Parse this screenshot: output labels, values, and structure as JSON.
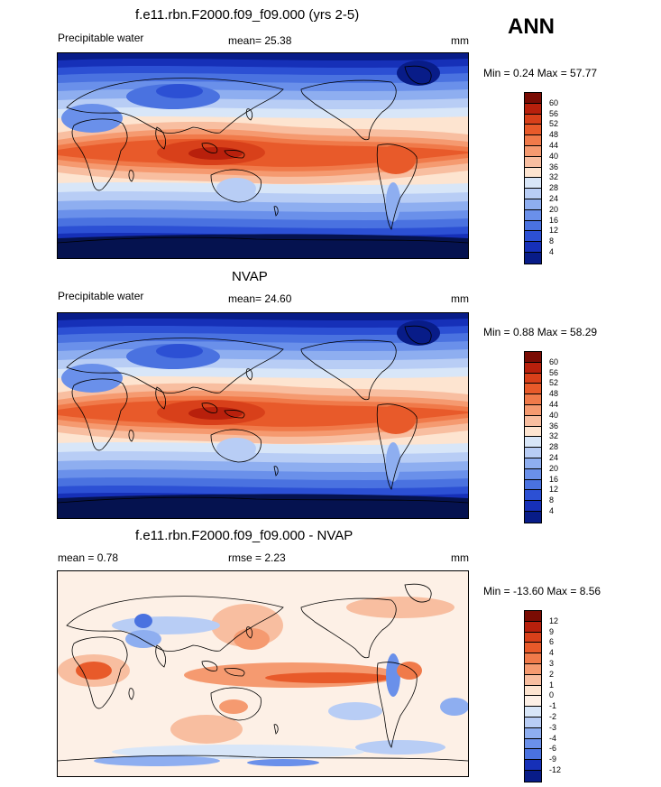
{
  "season": "ANN",
  "panels": [
    {
      "title": "f.e11.rbn.F2000.f09_f09.000 (yrs 2-5)",
      "left_label": "Precipitable water",
      "center_label": "mean=  25.38",
      "units": "mm",
      "minmax": "Min =   0.24 Max =  57.77",
      "legend_ticks": [
        "60",
        "56",
        "52",
        "48",
        "44",
        "40",
        "36",
        "32",
        "28",
        "24",
        "20",
        "16",
        "12",
        "8",
        "4"
      ]
    },
    {
      "title": "NVAP",
      "left_label": "Precipitable water",
      "center_label": "mean=  24.60",
      "units": "mm",
      "minmax": "Min =   0.88 Max =  58.29",
      "legend_ticks": [
        "60",
        "56",
        "52",
        "48",
        "44",
        "40",
        "36",
        "32",
        "28",
        "24",
        "20",
        "16",
        "12",
        "8",
        "4"
      ]
    },
    {
      "title": "f.e11.rbn.F2000.f09_f09.000 - NVAP",
      "left_label": "mean =   0.78",
      "center_label": "rmse =   2.23",
      "units": "mm",
      "minmax": "Min = -13.60 Max =   8.56",
      "legend_ticks": [
        "12",
        "9",
        "6",
        "4",
        "3",
        "2",
        "1",
        "0",
        "-1",
        "-2",
        "-3",
        "-4",
        "-6",
        "-9",
        "-12"
      ]
    }
  ],
  "colors": {
    "abs_scale": [
      "#7a0c04",
      "#b8200c",
      "#d8401a",
      "#e85a2a",
      "#f07a4a",
      "#f59a70",
      "#f8bea0",
      "#fde4d0",
      "#d8e6f8",
      "#b8cdf5",
      "#8eaef0",
      "#6a90ea",
      "#4a72e0",
      "#2c50d4",
      "#1630b8",
      "#081c88"
    ],
    "diff_scale": [
      "#7a0c04",
      "#b8200c",
      "#d8401a",
      "#e85a2a",
      "#f07a4a",
      "#f59a70",
      "#f8bea0",
      "#fde4d0",
      "#fdf0e6",
      "#d8e6f8",
      "#b8cdf5",
      "#8eaef0",
      "#6a90ea",
      "#4a72e0",
      "#1630b8",
      "#081c88"
    ]
  }
}
